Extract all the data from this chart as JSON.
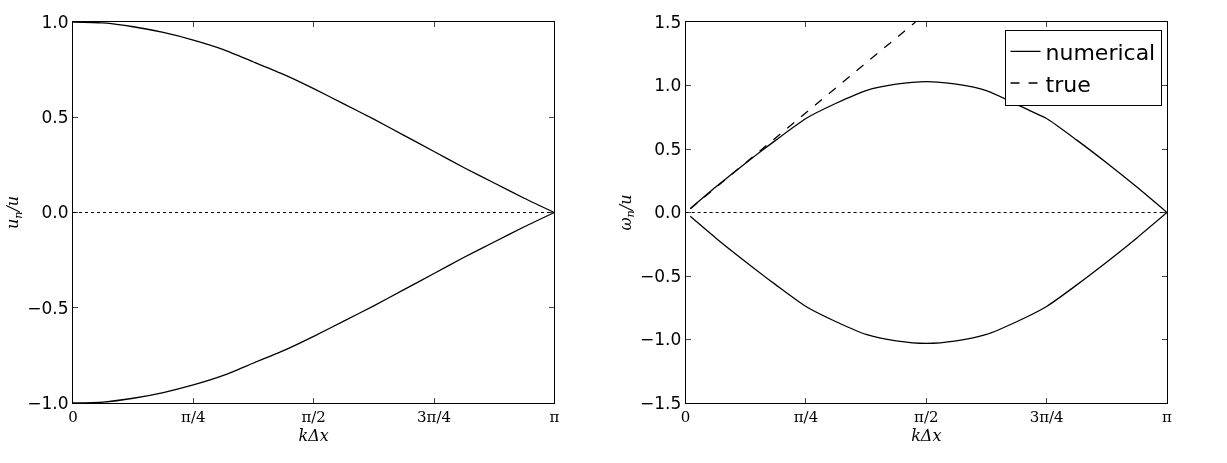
{
  "chart_data": [
    {
      "type": "line",
      "xlabel": "kΔx",
      "ylabel": "u$_{n}$/u",
      "xlim": [
        0,
        3.1416
      ],
      "xticks": [
        0,
        {
          "value": 0.7854,
          "label": "π/4"
        },
        {
          "value": 1.5708,
          "label": "π/2"
        },
        {
          "value": 2.3562,
          "label": "3π/4"
        },
        {
          "value": 3.1416,
          "label": "π"
        }
      ],
      "ylim": [
        -1.0,
        1.0
      ],
      "yticks": [
        {
          "value": -1.0,
          "label": "−1.0"
        },
        {
          "value": -0.5,
          "label": "−0.5"
        },
        {
          "value": 0,
          "label": "0.0"
        },
        {
          "value": 0.5,
          "label": "0.5"
        },
        {
          "value": 1.0,
          "label": "1.0"
        }
      ],
      "ref_lines": [
        {
          "axis": "y",
          "value": 0,
          "color": "#000000",
          "line_style": "dotted"
        }
      ],
      "series": [
        {
          "color": "#000000",
          "line_style": "solid",
          "x": [
            0,
            0.196,
            0.393,
            0.589,
            0.785,
            0.982,
            1.178,
            1.374,
            1.571,
            1.767,
            1.963,
            2.16,
            2.356,
            2.553,
            2.749,
            2.945,
            3.1416
          ],
          "values": [
            1.0,
            0.995,
            0.975,
            0.945,
            0.905,
            0.855,
            0.79,
            0.725,
            0.65,
            0.57,
            0.49,
            0.405,
            0.32,
            0.235,
            0.155,
            0.075,
            0
          ]
        },
        {
          "color": "#000000",
          "line_style": "solid",
          "x": [
            0,
            0.196,
            0.393,
            0.589,
            0.785,
            0.982,
            1.178,
            1.374,
            1.571,
            1.767,
            1.963,
            2.16,
            2.356,
            2.553,
            2.749,
            2.945,
            3.1416
          ],
          "values": [
            -1.0,
            -0.995,
            -0.975,
            -0.945,
            -0.905,
            -0.855,
            -0.79,
            -0.725,
            -0.65,
            -0.57,
            -0.49,
            -0.405,
            -0.32,
            -0.235,
            -0.155,
            -0.075,
            0
          ]
        }
      ]
    },
    {
      "type": "line",
      "xlabel": "kΔx",
      "ylabel": "ω$_{n}$/u",
      "legend": "top right",
      "xlim": [
        0,
        3.1416
      ],
      "xticks": [
        0,
        {
          "value": 0.7854,
          "label": "π/4"
        },
        {
          "value": 1.5708,
          "label": "π/2"
        },
        {
          "value": 2.3562,
          "label": "3π/4"
        },
        {
          "value": 3.1416,
          "label": "π"
        }
      ],
      "ylim": [
        -1.5,
        1.5
      ],
      "yticks": [
        {
          "value": -1.5,
          "label": "−1.5"
        },
        {
          "value": -1.0,
          "label": "−1.0"
        },
        {
          "value": -0.5,
          "label": "−0.5"
        },
        {
          "value": 0,
          "label": "0.0"
        },
        {
          "value": 0.5,
          "label": "0.5"
        },
        {
          "value": 1.0,
          "label": "1.0"
        },
        {
          "value": 1.5,
          "label": "1.5"
        }
      ],
      "ref_lines": [
        {
          "axis": "y",
          "value": 0,
          "color": "#000000",
          "line_style": "dotted"
        }
      ],
      "series": [
        {
          "name": "numerical",
          "color": "#000000",
          "line_style": "solid",
          "x": [
            0.03,
            0.196,
            0.393,
            0.589,
            0.785,
            0.982,
            1.178,
            1.374,
            1.571,
            1.767,
            1.963,
            2.25,
            2.356,
            2.553,
            2.749,
            2.945,
            3.1416
          ],
          "values": [
            0.03,
            0.2,
            0.39,
            0.57,
            0.74,
            0.86,
            0.96,
            1.01,
            1.03,
            1.01,
            0.96,
            0.8,
            0.74,
            0.57,
            0.39,
            0.2,
            0
          ]
        },
        {
          "name": "true",
          "color": "#000000",
          "line_style": "dashed",
          "x": [
            0.03,
            1.5
          ],
          "values": [
            0.03,
            1.5
          ]
        },
        {
          "color": "#000000",
          "line_style": "solid",
          "x": [
            0.03,
            0.196,
            0.393,
            0.589,
            0.785,
            0.982,
            1.178,
            1.374,
            1.571,
            1.767,
            1.963,
            2.16,
            2.356,
            2.553,
            2.749,
            2.945,
            3.1416
          ],
          "values": [
            -0.03,
            -0.2,
            -0.39,
            -0.57,
            -0.74,
            -0.86,
            -0.96,
            -1.01,
            -1.03,
            -1.01,
            -0.96,
            -0.86,
            -0.74,
            -0.57,
            -0.39,
            -0.2,
            0
          ]
        }
      ]
    }
  ]
}
